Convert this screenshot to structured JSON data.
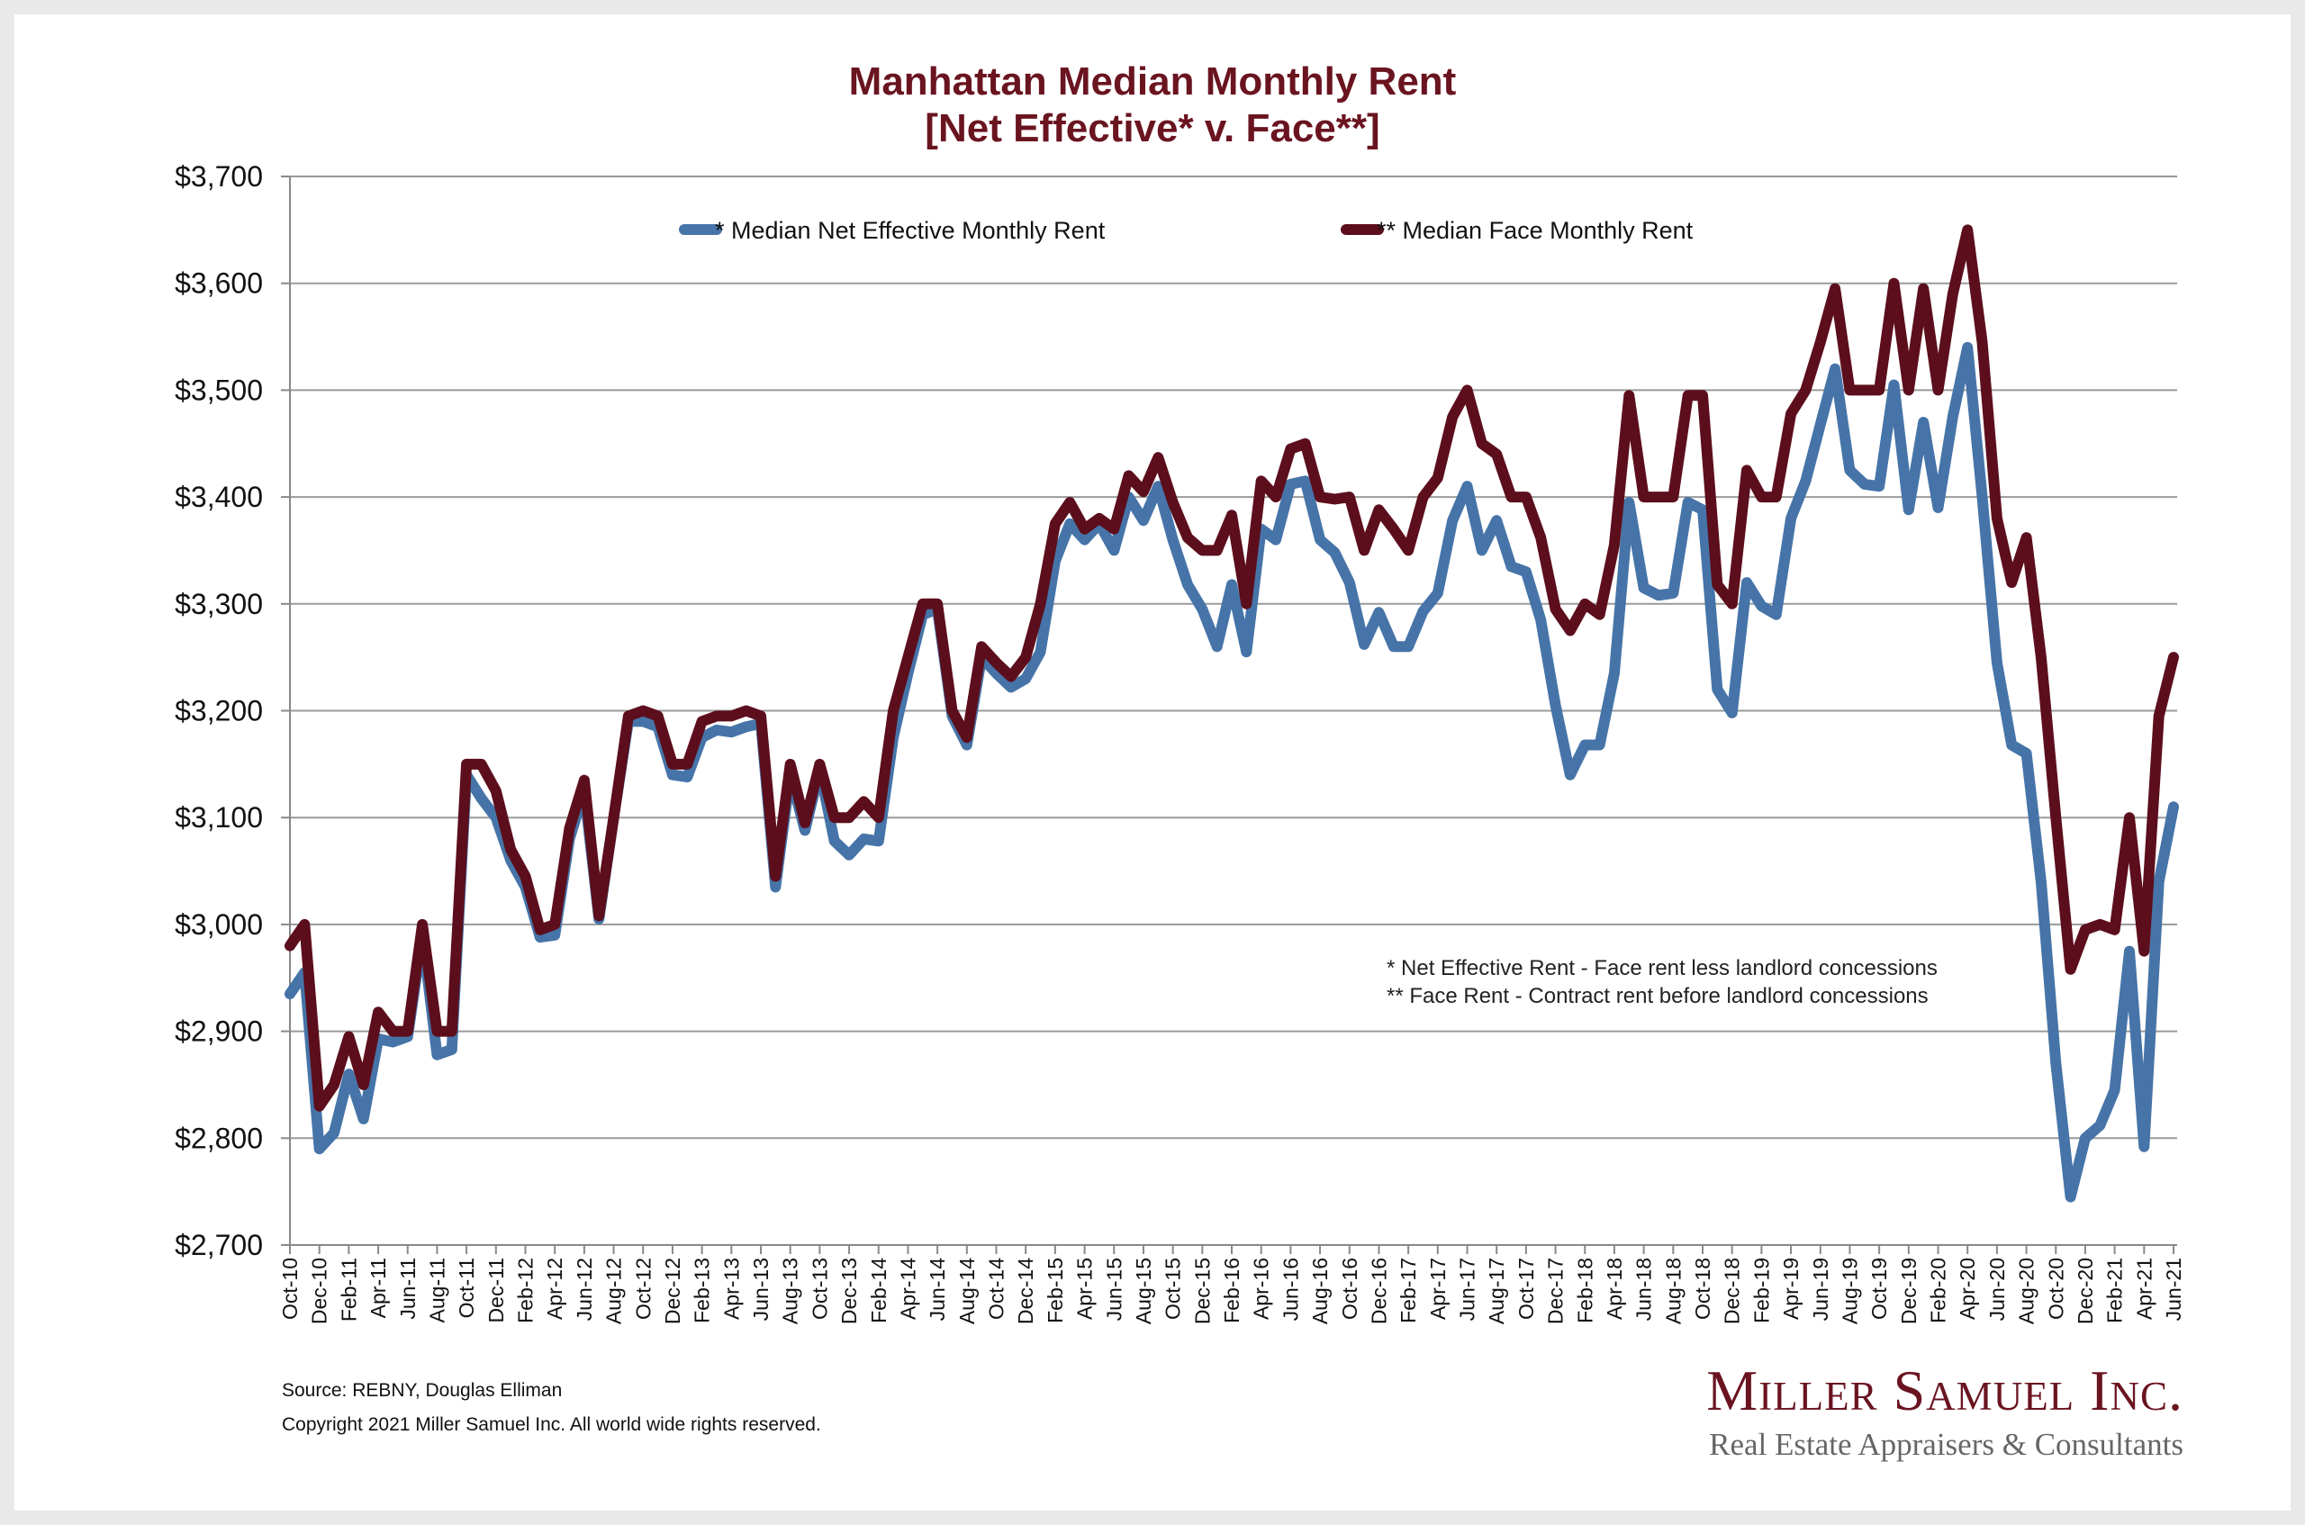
{
  "chart_data": {
    "type": "line",
    "title": "Manhattan Median Monthly Rent",
    "subtitle": "[Net Effective* v. Face**]",
    "xlabel": "",
    "ylabel": "",
    "ylim": [
      2700,
      3700
    ],
    "y_ticks": [
      2700,
      2800,
      2900,
      3000,
      3100,
      3200,
      3300,
      3400,
      3500,
      3600,
      3700
    ],
    "y_tick_labels": [
      "$2,700",
      "$2,800",
      "$2,900",
      "$3,000",
      "$3,100",
      "$3,200",
      "$3,300",
      "$3,400",
      "$3,500",
      "$3,600",
      "$3,700"
    ],
    "grid": true,
    "legend_placement": "top",
    "x_start": "Oct-10",
    "x_end": "Jun-21",
    "x_frequency": "monthly",
    "x_tick_labels": [
      "Oct-10",
      "Dec-10",
      "Feb-11",
      "Apr-11",
      "Jun-11",
      "Aug-11",
      "Oct-11",
      "Dec-11",
      "Feb-12",
      "Apr-12",
      "Jun-12",
      "Aug-12",
      "Oct-12",
      "Dec-12",
      "Feb-13",
      "Apr-13",
      "Jun-13",
      "Aug-13",
      "Oct-13",
      "Dec-13",
      "Feb-14",
      "Apr-14",
      "Jun-14",
      "Aug-14",
      "Oct-14",
      "Dec-14",
      "Feb-15",
      "Apr-15",
      "Jun-15",
      "Aug-15",
      "Oct-15",
      "Dec-15",
      "Feb-16",
      "Apr-16",
      "Jun-16",
      "Aug-16",
      "Oct-16",
      "Dec-16",
      "Feb-17",
      "Apr-17",
      "Jun-17",
      "Aug-17",
      "Oct-17",
      "Dec-17",
      "Feb-18",
      "Apr-18",
      "Jun-18",
      "Aug-18",
      "Oct-18",
      "Dec-18",
      "Feb-19",
      "Apr-19",
      "Jun-19",
      "Aug-19",
      "Oct-19",
      "Dec-19",
      "Feb-20",
      "Apr-20",
      "Jun-20",
      "Aug-20",
      "Oct-20",
      "Dec-20",
      "Feb-21",
      "Apr-21",
      "Jun-21"
    ],
    "series": [
      {
        "name": "* Median Net Effective Monthly Rent",
        "color": "#4674a8",
        "values": [
          2935,
          2955,
          2790,
          2805,
          2860,
          2818,
          2893,
          2890,
          2895,
          2990,
          2878,
          2883,
          3140,
          3118,
          3100,
          3060,
          3035,
          2988,
          2990,
          3080,
          3125,
          3005,
          3100,
          3190,
          3190,
          3185,
          3140,
          3138,
          3175,
          3182,
          3180,
          3185,
          3188,
          3035,
          3140,
          3088,
          3145,
          3078,
          3065,
          3080,
          3078,
          3175,
          3235,
          3290,
          3295,
          3195,
          3168,
          3250,
          3235,
          3222,
          3230,
          3255,
          3340,
          3375,
          3360,
          3375,
          3350,
          3400,
          3378,
          3410,
          3360,
          3318,
          3295,
          3260,
          3318,
          3255,
          3370,
          3360,
          3412,
          3415,
          3360,
          3348,
          3320,
          3262,
          3292,
          3260,
          3260,
          3293,
          3310,
          3378,
          3410,
          3350,
          3378,
          3335,
          3330,
          3285,
          3205,
          3140,
          3168,
          3168,
          3235,
          3395,
          3315,
          3308,
          3310,
          3395,
          3388,
          3220,
          3198,
          3320,
          3298,
          3290,
          3380,
          3415,
          3468,
          3520,
          3425,
          3412,
          3410,
          3505,
          3388,
          3470,
          3390,
          3475,
          3540,
          3400,
          3245,
          3168,
          3160,
          3040,
          2870,
          2745,
          2800,
          2812,
          2845,
          2975,
          2792,
          3040,
          3110
        ]
      },
      {
        "name": "** Median Face Monthly Rent",
        "color": "#5c0e1c",
        "values": [
          2980,
          3000,
          2830,
          2850,
          2895,
          2850,
          2918,
          2900,
          2900,
          3000,
          2900,
          2900,
          3150,
          3150,
          3125,
          3070,
          3045,
          2995,
          3000,
          3090,
          3135,
          3008,
          3100,
          3195,
          3200,
          3195,
          3150,
          3150,
          3190,
          3195,
          3195,
          3200,
          3195,
          3045,
          3150,
          3095,
          3150,
          3100,
          3100,
          3115,
          3100,
          3200,
          3250,
          3300,
          3300,
          3200,
          3175,
          3260,
          3245,
          3232,
          3250,
          3300,
          3375,
          3395,
          3370,
          3380,
          3370,
          3420,
          3405,
          3437,
          3395,
          3362,
          3350,
          3350,
          3383,
          3300,
          3415,
          3400,
          3445,
          3450,
          3400,
          3398,
          3400,
          3350,
          3388,
          3370,
          3350,
          3400,
          3418,
          3475,
          3500,
          3450,
          3440,
          3400,
          3400,
          3362,
          3295,
          3275,
          3300,
          3290,
          3355,
          3495,
          3400,
          3400,
          3400,
          3495,
          3495,
          3318,
          3300,
          3425,
          3400,
          3400,
          3478,
          3500,
          3545,
          3595,
          3500,
          3500,
          3500,
          3600,
          3500,
          3595,
          3500,
          3590,
          3650,
          3545,
          3380,
          3320,
          3362,
          3250,
          3100,
          2958,
          2995,
          3000,
          2995,
          3100,
          2975,
          3195,
          3250
        ]
      }
    ],
    "annotations": [
      "* Net Effective Rent - Face rent less landlord concessions",
      "** Face Rent - Contract rent before landlord concessions"
    ]
  },
  "footer": {
    "source": "Source: REBNY, Douglas Elliman",
    "copyright": "Copyright 2021 Miller Samuel Inc.  All world wide rights reserved."
  },
  "logo": {
    "name": "Miller Samuel Inc.",
    "tagline": "Real Estate Appraisers & Consultants"
  }
}
